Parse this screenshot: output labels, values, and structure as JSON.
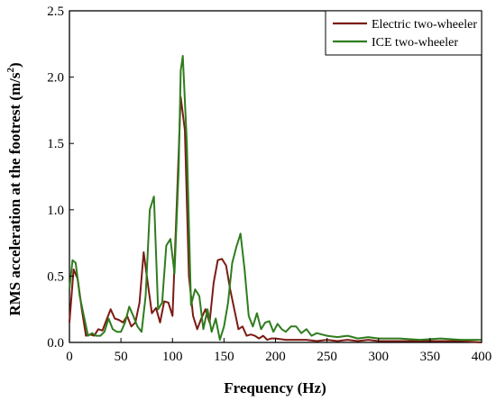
{
  "chart_data": {
    "type": "line",
    "title": "",
    "xlabel": "Frequency (Hz)",
    "ylabel_main": "RMS acceleration at the footrest (m/s",
    "ylabel_sup": "2",
    "ylabel_close": ")",
    "xlim": [
      0,
      400
    ],
    "ylim": [
      0,
      2.5
    ],
    "x_ticks": [
      0,
      50,
      100,
      150,
      200,
      250,
      300,
      350,
      400
    ],
    "x_tick_labels": [
      "0",
      "50",
      "100",
      "150",
      "200",
      "250",
      "300",
      "350",
      "400"
    ],
    "y_ticks": [
      0,
      0.5,
      1.0,
      1.5,
      2.0,
      2.5
    ],
    "y_tick_labels": [
      "0.0",
      "0.5",
      "1.0",
      "1.5",
      "2.0",
      "2.5"
    ],
    "grid": false,
    "legend_position": "top-right",
    "series": [
      {
        "name": "Electric two-wheeler",
        "color": "#7b1c14",
        "x": [
          0,
          4,
          8,
          12,
          16,
          20,
          24,
          28,
          32,
          36,
          40,
          44,
          48,
          52,
          56,
          60,
          64,
          68,
          72,
          76,
          80,
          84,
          88,
          92,
          96,
          100,
          104,
          108,
          112,
          116,
          120,
          124,
          128,
          132,
          136,
          140,
          144,
          148,
          152,
          156,
          160,
          164,
          168,
          172,
          176,
          180,
          184,
          188,
          192,
          196,
          200,
          210,
          220,
          230,
          240,
          250,
          260,
          270,
          280,
          290,
          300,
          320,
          340,
          360,
          380,
          400
        ],
        "y": [
          0.15,
          0.55,
          0.48,
          0.25,
          0.05,
          0.06,
          0.05,
          0.1,
          0.09,
          0.17,
          0.25,
          0.18,
          0.17,
          0.15,
          0.2,
          0.12,
          0.15,
          0.3,
          0.68,
          0.45,
          0.22,
          0.26,
          0.15,
          0.31,
          0.3,
          0.2,
          1.0,
          1.85,
          1.6,
          0.5,
          0.2,
          0.1,
          0.18,
          0.25,
          0.15,
          0.45,
          0.62,
          0.63,
          0.58,
          0.4,
          0.25,
          0.1,
          0.12,
          0.05,
          0.06,
          0.05,
          0.03,
          0.05,
          0.02,
          0.03,
          0.03,
          0.02,
          0.02,
          0.02,
          0.01,
          0.02,
          0.01,
          0.02,
          0.01,
          0.02,
          0.01,
          0.01,
          0.01,
          0.01,
          0.01,
          0.0
        ]
      },
      {
        "name": "ICE two-wheeler",
        "color": "#2f7d1e",
        "x": [
          0,
          3,
          6,
          10,
          14,
          18,
          22,
          26,
          30,
          34,
          38,
          42,
          46,
          50,
          54,
          58,
          62,
          66,
          70,
          74,
          78,
          82,
          86,
          90,
          94,
          98,
          102,
          106,
          108,
          110,
          114,
          118,
          122,
          126,
          130,
          134,
          138,
          142,
          146,
          150,
          154,
          158,
          162,
          166,
          170,
          174,
          178,
          182,
          186,
          190,
          194,
          198,
          202,
          206,
          210,
          215,
          220,
          225,
          230,
          235,
          240,
          250,
          260,
          270,
          280,
          290,
          300,
          320,
          340,
          360,
          380,
          400
        ],
        "y": [
          0.4,
          0.62,
          0.6,
          0.35,
          0.2,
          0.05,
          0.07,
          0.05,
          0.05,
          0.08,
          0.18,
          0.1,
          0.08,
          0.08,
          0.15,
          0.27,
          0.2,
          0.12,
          0.08,
          0.35,
          1.0,
          1.1,
          0.25,
          0.3,
          0.73,
          0.78,
          0.52,
          1.3,
          2.05,
          2.16,
          1.5,
          0.28,
          0.4,
          0.35,
          0.1,
          0.25,
          0.08,
          0.18,
          0.02,
          0.12,
          0.3,
          0.6,
          0.72,
          0.82,
          0.55,
          0.2,
          0.12,
          0.22,
          0.1,
          0.15,
          0.16,
          0.08,
          0.14,
          0.1,
          0.08,
          0.12,
          0.12,
          0.07,
          0.1,
          0.05,
          0.07,
          0.05,
          0.04,
          0.05,
          0.03,
          0.04,
          0.03,
          0.03,
          0.02,
          0.03,
          0.02,
          0.02
        ]
      }
    ]
  }
}
